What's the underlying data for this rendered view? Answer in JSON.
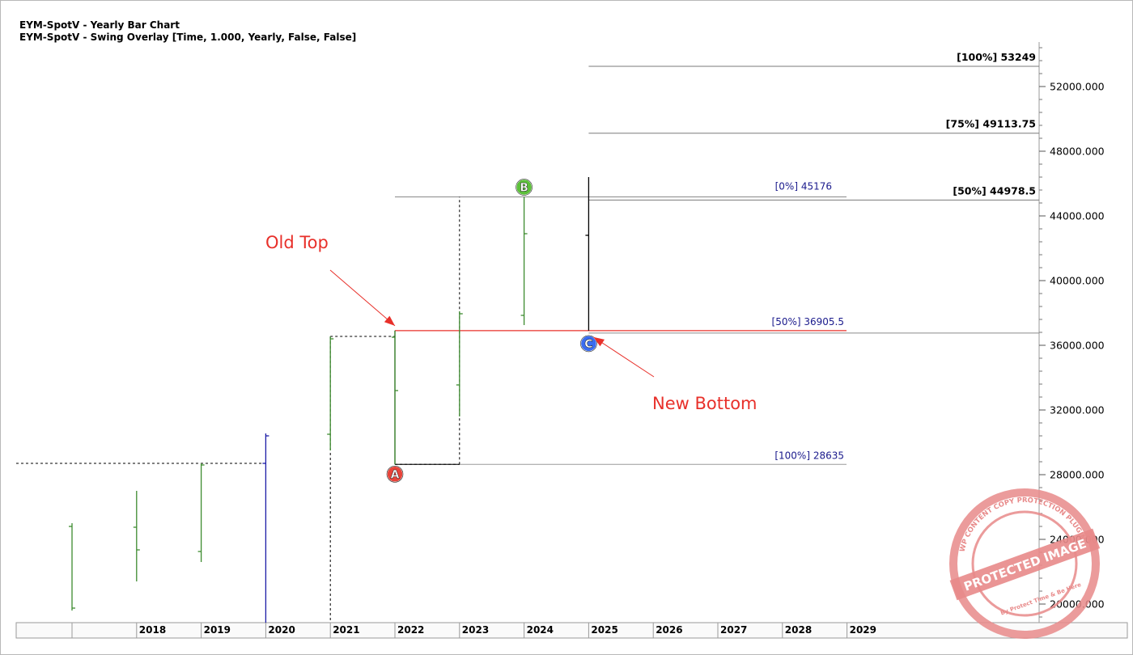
{
  "header": {
    "line1": "EYM-SpotV - Yearly Bar Chart",
    "line2": "EYM-SpotV - Swing Overlay [Time, 1.000, Yearly, False, False]"
  },
  "colors": {
    "bar": "#3d8b2f",
    "bar_2020": "#1a1aa6",
    "bar_2025": "#000000",
    "level_label": "#1a1a8c",
    "annotation": "#e8302a",
    "swing_A": "#e8443a",
    "swing_B": "#5cbf3a",
    "swing_C": "#3a6cf0",
    "stamp": "#e88a8a"
  },
  "chart_data": {
    "type": "bar",
    "title": "EYM-SpotV - Yearly Bar Chart",
    "subtitle": "EYM-SpotV - Swing Overlay [Time, 1.000, Yearly, False, False]",
    "xlabel": "",
    "ylabel": "",
    "x_tick_labels": [
      "2018",
      "2019",
      "2020",
      "2021",
      "2022",
      "2023",
      "2024",
      "2025",
      "2026",
      "2027",
      "2028",
      "2029"
    ],
    "y_tick_labels": [
      "52000.000",
      "48000.000",
      "44000.000",
      "40000.000",
      "36000.000",
      "32000.000",
      "28000.000",
      "24000.000",
      "20000.000"
    ],
    "ylim": [
      18800,
      54500
    ],
    "grid": false,
    "bars": [
      {
        "year": "2017",
        "open": 24800,
        "high": 25000,
        "low": 19600,
        "close": 19750
      },
      {
        "year": "2018",
        "open": 24750,
        "high": 27000,
        "low": 21400,
        "close": 23350
      },
      {
        "year": "2019",
        "open": 23250,
        "high": 28700,
        "low": 22600,
        "close": 28600
      },
      {
        "year": "2020",
        "open": 28700,
        "high": 30550,
        "low": 18800,
        "close": 30400
      },
      {
        "year": "2021",
        "open": 30500,
        "high": 36550,
        "low": 29500,
        "close": 36400
      },
      {
        "year": "2022",
        "open": 36500,
        "high": 36905.5,
        "low": 28635,
        "close": 33200
      },
      {
        "year": "2023",
        "open": 33550,
        "high": 38100,
        "low": 31600,
        "close": 37950
      },
      {
        "year": "2024",
        "open": 37850,
        "high": 45176,
        "low": 37250,
        "close": 42900
      },
      {
        "year": "2025",
        "open": 42800,
        "high": 46400,
        "low": 36905.5,
        "close": null
      }
    ],
    "swing_points": [
      {
        "label": "A",
        "year": "2022",
        "value": 28635
      },
      {
        "label": "B",
        "year": "2024",
        "value": 45176
      },
      {
        "label": "C",
        "year": "2025",
        "value": 36905.5
      }
    ],
    "retracement_levels": [
      {
        "label": "[0%] 45176",
        "value": 45176
      },
      {
        "label": "[50%] 36905.5",
        "value": 36905.5
      },
      {
        "label": "[100%] 28635",
        "value": 28635
      }
    ],
    "projection_levels": [
      {
        "label": "[100%] 53249",
        "value": 53249
      },
      {
        "label": "[75%] 49113.75",
        "value": 49113.75
      },
      {
        "label": "[50%] 44978.5",
        "value": 44978.5
      }
    ],
    "annotations": [
      {
        "text": "Old Top",
        "points_to_year": "2022",
        "points_to_value": 36905.5
      },
      {
        "text": "New Bottom",
        "points_to_year": "2025",
        "points_to_value": 36905.5
      }
    ],
    "watermark": {
      "main": "PROTECTED IMAGE",
      "ring": "WP CONTENT COPY PROTECTION PLUGIN",
      "small": "By Protect Time & Be Here"
    }
  }
}
